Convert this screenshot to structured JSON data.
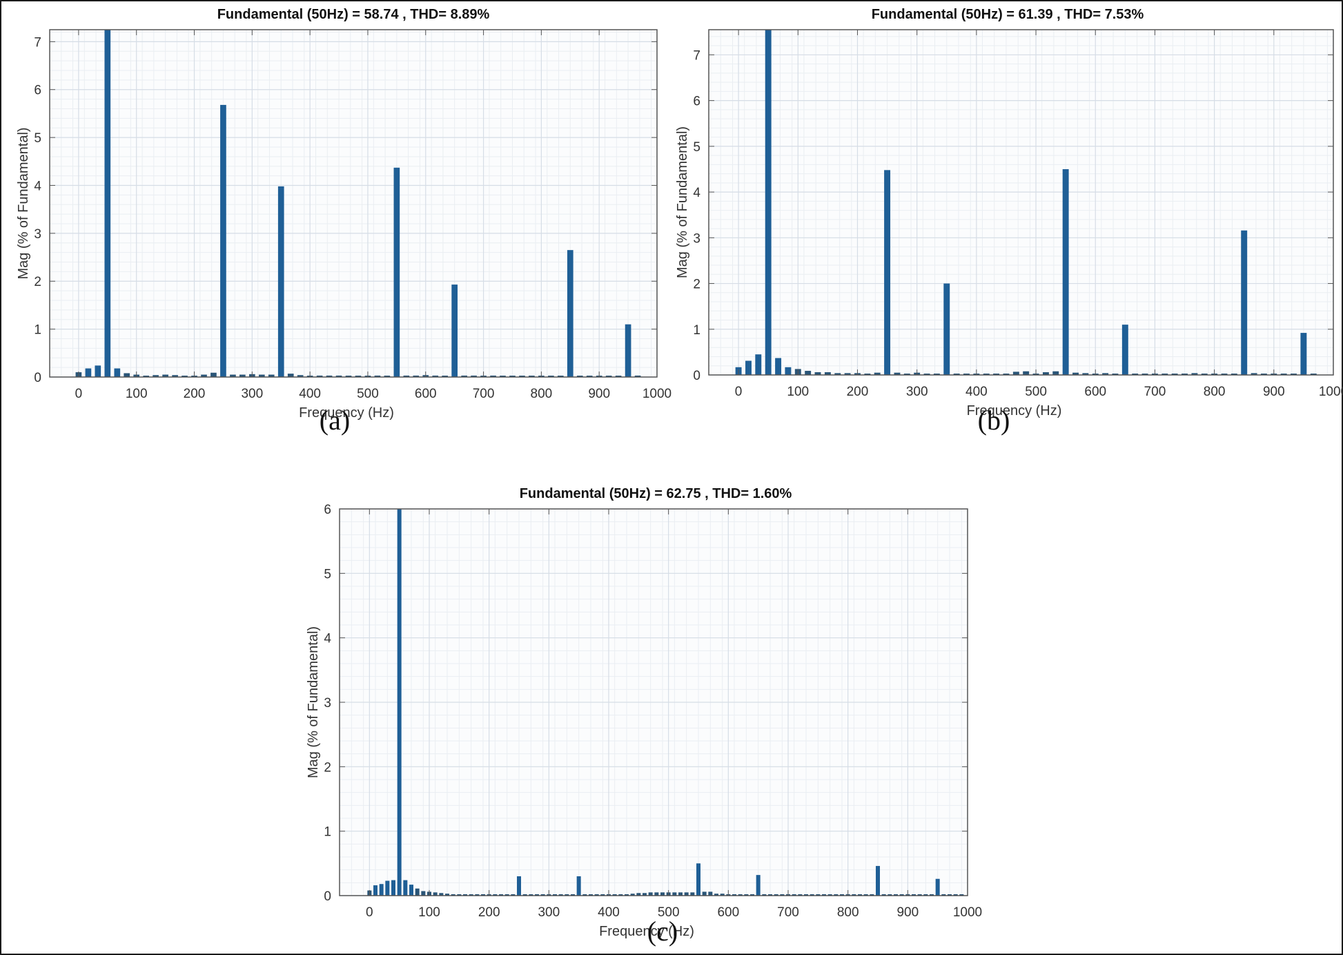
{
  "figure": {
    "captions": [
      "(a)",
      "(b)",
      "(c)"
    ]
  },
  "colors": {
    "bar": "#1f5f96",
    "bar_small": "#2a5577",
    "grid_major": "#d6dde6",
    "grid_minor": "#eaeef2",
    "axis": "#555555",
    "plot_bg": "#fbfcfd"
  },
  "chart_data": [
    {
      "id": "a",
      "type": "bar",
      "title": "Fundamental (50Hz) = 58.74 , THD= 8.89%",
      "xlabel": "Frequency (Hz)",
      "ylabel": "Mag (% of Fundamental)",
      "xlim": [
        -50,
        1000
      ],
      "ylim": [
        0,
        7.25
      ],
      "xticks": [
        0,
        100,
        200,
        300,
        400,
        500,
        600,
        700,
        800,
        900,
        1000
      ],
      "yticks": [
        0,
        1,
        2,
        3,
        4,
        5,
        6,
        7
      ],
      "grid": "major+minor",
      "caption": "(a)",
      "x": [
        0,
        16.7,
        33.3,
        50,
        66.7,
        83.3,
        100,
        116.7,
        133.3,
        150,
        166.7,
        183.3,
        200,
        216.7,
        233.3,
        250,
        266.7,
        283.3,
        300,
        316.7,
        333.3,
        350,
        366.7,
        383.3,
        400,
        416.7,
        433.3,
        450,
        466.7,
        483.3,
        500,
        516.7,
        533.3,
        550,
        566.7,
        583.3,
        600,
        616.7,
        633.3,
        650,
        666.7,
        683.3,
        700,
        716.7,
        733.3,
        750,
        766.7,
        783.3,
        800,
        816.7,
        833.3,
        850,
        866.7,
        883.3,
        900,
        916.7,
        933.3,
        950,
        966.7
      ],
      "values": [
        0.1,
        0.18,
        0.24,
        100,
        0.18,
        0.08,
        0.05,
        0.02,
        0.04,
        0.05,
        0.04,
        0.01,
        0.01,
        0.05,
        0.09,
        5.68,
        0.05,
        0.05,
        0.06,
        0.05,
        0.05,
        3.98,
        0.07,
        0.04,
        0.01,
        0.03,
        0.03,
        0.03,
        0.01,
        0.02,
        0.01,
        0.03,
        0.02,
        4.37,
        0.03,
        0.03,
        0.04,
        0.03,
        0.02,
        1.93,
        0.03,
        0.03,
        0.01,
        0.03,
        0.01,
        0.01,
        0.01,
        0.01,
        0.01,
        0.01,
        0.01,
        2.65,
        0.01,
        0.01,
        0.01,
        0.02,
        0.01,
        1.1,
        0.03
      ]
    },
    {
      "id": "b",
      "type": "bar",
      "title": "Fundamental (50Hz) = 61.39 , THD= 7.53%",
      "xlabel": "Frequency (Hz)",
      "ylabel": "Mag (% of Fundamental)",
      "xlim": [
        -50,
        1000
      ],
      "ylim": [
        0,
        7.55
      ],
      "xticks": [
        0,
        100,
        200,
        300,
        400,
        500,
        600,
        700,
        800,
        900,
        1000
      ],
      "yticks": [
        0,
        1,
        2,
        3,
        4,
        5,
        6,
        7
      ],
      "grid": "major+minor",
      "caption": "(b)",
      "x": [
        0,
        16.7,
        33.3,
        50,
        66.7,
        83.3,
        100,
        116.7,
        133.3,
        150,
        166.7,
        183.3,
        200,
        216.7,
        233.3,
        250,
        266.7,
        283.3,
        300,
        316.7,
        333.3,
        350,
        366.7,
        383.3,
        400,
        416.7,
        433.3,
        450,
        466.7,
        483.3,
        500,
        516.7,
        533.3,
        550,
        566.7,
        583.3,
        600,
        616.7,
        633.3,
        650,
        666.7,
        683.3,
        700,
        716.7,
        733.3,
        750,
        766.7,
        783.3,
        800,
        816.7,
        833.3,
        850,
        866.7,
        883.3,
        900,
        916.7,
        933.3,
        950,
        966.7
      ],
      "values": [
        0.17,
        0.31,
        0.45,
        100,
        0.37,
        0.17,
        0.13,
        0.09,
        0.06,
        0.06,
        0.04,
        0.04,
        0.04,
        0.03,
        0.05,
        4.48,
        0.05,
        0.02,
        0.05,
        0.02,
        0.01,
        2.0,
        0.02,
        0.02,
        0.03,
        0.02,
        0.03,
        0.02,
        0.07,
        0.08,
        0.03,
        0.06,
        0.08,
        4.5,
        0.05,
        0.04,
        0.02,
        0.04,
        0.02,
        1.1,
        0.01,
        0.02,
        0.01,
        0.01,
        0.01,
        0.01,
        0.04,
        0.02,
        0.02,
        0.03,
        0.02,
        3.16,
        0.04,
        0.02,
        0.01,
        0.01,
        0.01,
        0.92,
        0.02
      ]
    },
    {
      "id": "c",
      "type": "bar",
      "title": "Fundamental (50Hz) = 62.75 , THD= 1.60%",
      "xlabel": "Frequency (Hz)",
      "ylabel": "Mag (% of Fundamental)",
      "xlim": [
        -50,
        1000
      ],
      "ylim": [
        0,
        6
      ],
      "xticks": [
        0,
        100,
        200,
        300,
        400,
        500,
        600,
        700,
        800,
        900,
        1000
      ],
      "yticks": [
        0,
        1,
        2,
        3,
        4,
        5,
        6
      ],
      "grid": "major+minor",
      "caption": "(c)",
      "x": [
        0,
        10,
        20,
        30,
        40,
        50,
        60,
        70,
        80,
        90,
        100,
        110,
        120,
        130,
        140,
        150,
        160,
        170,
        180,
        190,
        200,
        210,
        220,
        230,
        240,
        250,
        260,
        270,
        280,
        290,
        300,
        310,
        320,
        330,
        340,
        350,
        360,
        370,
        380,
        390,
        400,
        410,
        420,
        430,
        440,
        450,
        460,
        470,
        480,
        490,
        500,
        510,
        520,
        530,
        540,
        550,
        560,
        570,
        580,
        590,
        600,
        610,
        620,
        630,
        640,
        650,
        660,
        670,
        680,
        690,
        700,
        710,
        720,
        730,
        740,
        750,
        760,
        770,
        780,
        790,
        800,
        810,
        820,
        830,
        840,
        850,
        860,
        870,
        880,
        890,
        900,
        910,
        920,
        930,
        940,
        950,
        960,
        970,
        980,
        990
      ],
      "values": [
        0.08,
        0.16,
        0.18,
        0.23,
        0.24,
        100,
        0.24,
        0.17,
        0.11,
        0.07,
        0.06,
        0.05,
        0.04,
        0.03,
        0.01,
        0.01,
        0.01,
        0.01,
        0.01,
        0.01,
        0.01,
        0.01,
        0.01,
        0.01,
        0.01,
        0.3,
        0.01,
        0.01,
        0.01,
        0.01,
        0.01,
        0.01,
        0.01,
        0.01,
        0.01,
        0.3,
        0.02,
        0.01,
        0.01,
        0.01,
        0.01,
        0.01,
        0.02,
        0.02,
        0.03,
        0.04,
        0.04,
        0.05,
        0.05,
        0.05,
        0.05,
        0.05,
        0.05,
        0.05,
        0.05,
        0.5,
        0.06,
        0.06,
        0.03,
        0.03,
        0.01,
        0.01,
        0.01,
        0.01,
        0.01,
        0.32,
        0.01,
        0.01,
        0.01,
        0.01,
        0.01,
        0.01,
        0.01,
        0.01,
        0.01,
        0.01,
        0.01,
        0.01,
        0.01,
        0.01,
        0.01,
        0.01,
        0.01,
        0.01,
        0.01,
        0.46,
        0.01,
        0.01,
        0.01,
        0.01,
        0.01,
        0.01,
        0.01,
        0.01,
        0.01,
        0.26,
        0.01,
        0.01,
        0.01,
        0.01
      ]
    }
  ]
}
